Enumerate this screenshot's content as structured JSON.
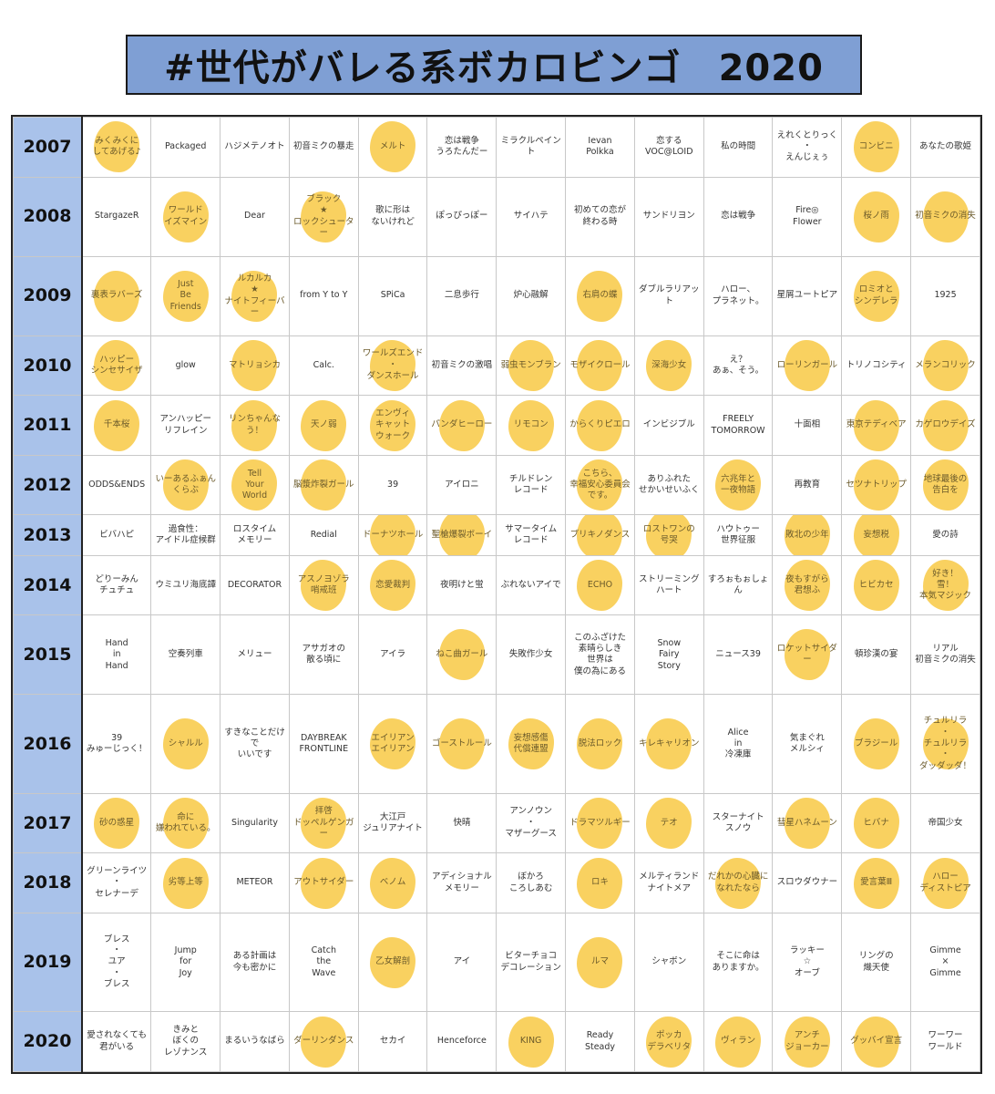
{
  "title": "#世代がバレる系ボカロビンゴ　2020",
  "colors": {
    "title_bg": "#7f9fd4",
    "year_bg": "#a9c2ea",
    "marker": "#f9cf57"
  },
  "rows": [
    {
      "year": "2007",
      "cells": [
        {
          "text": "みくみくに\nしてあげる♪",
          "marked": true
        },
        {
          "text": "Packaged",
          "marked": false
        },
        {
          "text": "ハジメテノオト",
          "marked": false
        },
        {
          "text": "初音ミクの暴走",
          "marked": false
        },
        {
          "text": "メルト",
          "marked": true
        },
        {
          "text": "恋は戦争\nうろたんだー",
          "marked": false
        },
        {
          "text": "ミラクルペイント",
          "marked": false
        },
        {
          "text": "Ievan\nPolkka",
          "marked": false
        },
        {
          "text": "恋する\nVOC@LOID",
          "marked": false
        },
        {
          "text": "私の時間",
          "marked": false
        },
        {
          "text": "えれくとりっく\n・\nえんじぇぅ",
          "marked": false
        },
        {
          "text": "コンビニ",
          "marked": true
        },
        {
          "text": "あなたの歌姫",
          "marked": false
        }
      ]
    },
    {
      "year": "2008",
      "cells": [
        {
          "text": "StargazeR",
          "marked": false
        },
        {
          "text": "ワールド\nイズマイン",
          "marked": true
        },
        {
          "text": "Dear",
          "marked": false
        },
        {
          "text": "ブラック\n★\nロックシューター",
          "marked": true
        },
        {
          "text": "歌に形は\nないけれど",
          "marked": false
        },
        {
          "text": "ぽっぴっぽー",
          "marked": false
        },
        {
          "text": "サイハテ",
          "marked": false
        },
        {
          "text": "初めての恋が\n終わる時",
          "marked": false
        },
        {
          "text": "サンドリヨン",
          "marked": false
        },
        {
          "text": "恋は戦争",
          "marked": false
        },
        {
          "text": "Fire◎\nFlower",
          "marked": false
        },
        {
          "text": "桜ノ雨",
          "marked": true
        },
        {
          "text": "初音ミクの消失",
          "marked": true
        }
      ]
    },
    {
      "year": "2009",
      "cells": [
        {
          "text": "裏表ラバーズ",
          "marked": true
        },
        {
          "text": "Just\nBe\nFriends",
          "marked": true
        },
        {
          "text": "ルカルカ\n★\nナイトフィーバー",
          "marked": true
        },
        {
          "text": "from Y to Y",
          "marked": false
        },
        {
          "text": "SPiCa",
          "marked": false
        },
        {
          "text": "二息歩行",
          "marked": false
        },
        {
          "text": "炉心融解",
          "marked": false
        },
        {
          "text": "右肩の蝶",
          "marked": true
        },
        {
          "text": "ダブルラリアット",
          "marked": false
        },
        {
          "text": "ハロー、\nプラネット。",
          "marked": false
        },
        {
          "text": "星屑ユートピア",
          "marked": false
        },
        {
          "text": "ロミオと\nシンデレラ",
          "marked": true
        },
        {
          "text": "1925",
          "marked": false
        }
      ]
    },
    {
      "year": "2010",
      "cells": [
        {
          "text": "ハッピー\nシンセサイザ",
          "marked": true
        },
        {
          "text": "glow",
          "marked": false
        },
        {
          "text": "マトリョシカ",
          "marked": true
        },
        {
          "text": "Calc.",
          "marked": false
        },
        {
          "text": "ワールズエンド\n・\nダンスホール",
          "marked": true
        },
        {
          "text": "初音ミクの激唱",
          "marked": false
        },
        {
          "text": "弱虫モンブラン",
          "marked": true
        },
        {
          "text": "モザイクロール",
          "marked": true
        },
        {
          "text": "深海少女",
          "marked": true
        },
        {
          "text": "え？\nあぁ、そう。",
          "marked": false
        },
        {
          "text": "ローリンガール",
          "marked": true
        },
        {
          "text": "トリノコシティ",
          "marked": false
        },
        {
          "text": "メランコリック",
          "marked": true
        }
      ]
    },
    {
      "year": "2011",
      "cells": [
        {
          "text": "千本桜",
          "marked": true
        },
        {
          "text": "アンハッピー\nリフレイン",
          "marked": false
        },
        {
          "text": "リンちゃんなう！",
          "marked": true
        },
        {
          "text": "天ノ弱",
          "marked": true
        },
        {
          "text": "エンヴィ\nキャット\nウォーク",
          "marked": true
        },
        {
          "text": "パンダヒーロー",
          "marked": true
        },
        {
          "text": "リモコン",
          "marked": true
        },
        {
          "text": "からくりピエロ",
          "marked": true
        },
        {
          "text": "インビジブル",
          "marked": false
        },
        {
          "text": "FREELY\nTOMORROW",
          "marked": false
        },
        {
          "text": "十面相",
          "marked": false
        },
        {
          "text": "東京テディベア",
          "marked": true
        },
        {
          "text": "カゲロウデイズ",
          "marked": true
        }
      ]
    },
    {
      "year": "2012",
      "cells": [
        {
          "text": "ODDS&ENDS",
          "marked": false
        },
        {
          "text": "いーあるふぁんくらぶ",
          "marked": true
        },
        {
          "text": "Tell\nYour\nWorld",
          "marked": true
        },
        {
          "text": "脳漿炸裂ガール",
          "marked": true
        },
        {
          "text": "39",
          "marked": false
        },
        {
          "text": "アイロニ",
          "marked": false
        },
        {
          "text": "チルドレン\nレコード",
          "marked": false
        },
        {
          "text": "こちら、\n幸福安心委員会\nです。",
          "marked": true
        },
        {
          "text": "ありふれた\nせかいせいふく",
          "marked": false
        },
        {
          "text": "六兆年と\n一夜物語",
          "marked": true
        },
        {
          "text": "再教育",
          "marked": false
        },
        {
          "text": "セツナトリップ",
          "marked": true
        },
        {
          "text": "地球最後の\n告白を",
          "marked": true
        }
      ]
    },
    {
      "year": "2013",
      "cells": [
        {
          "text": "ビバハピ",
          "marked": false
        },
        {
          "text": "過食性：\nアイドル症候群",
          "marked": false
        },
        {
          "text": "ロスタイム\nメモリー",
          "marked": false
        },
        {
          "text": "Redial",
          "marked": false
        },
        {
          "text": "ドーナツホール",
          "marked": true
        },
        {
          "text": "聖槍爆裂ボーイ",
          "marked": true
        },
        {
          "text": "サマータイム\nレコード",
          "marked": false
        },
        {
          "text": "ブリキノダンス",
          "marked": true
        },
        {
          "text": "ロストワンの\n号哭",
          "marked": true
        },
        {
          "text": "ハウトゥー\n世界征服",
          "marked": false
        },
        {
          "text": "敗北の少年",
          "marked": true
        },
        {
          "text": "妄想税",
          "marked": true
        },
        {
          "text": "愛の詩",
          "marked": false
        }
      ]
    },
    {
      "year": "2014",
      "cells": [
        {
          "text": "どりーみん\nチュチュ",
          "marked": false
        },
        {
          "text": "ウミユリ海底譚",
          "marked": false
        },
        {
          "text": "DECORATOR",
          "marked": false
        },
        {
          "text": "アスノヨゾラ\n哨戒班",
          "marked": true
        },
        {
          "text": "恋愛裁判",
          "marked": true
        },
        {
          "text": "夜明けと蛍",
          "marked": false
        },
        {
          "text": "ぶれないアイで",
          "marked": false
        },
        {
          "text": "ECHO",
          "marked": true
        },
        {
          "text": "ストリーミング\nハート",
          "marked": false
        },
        {
          "text": "すろぉもぉしょん",
          "marked": false
        },
        {
          "text": "夜もすがら\n君想ふ",
          "marked": true
        },
        {
          "text": "ヒビカセ",
          "marked": true
        },
        {
          "text": "好き！\n雪！\n本気マジック",
          "marked": true
        }
      ]
    },
    {
      "year": "2015",
      "cells": [
        {
          "text": "Hand\nin\nHand",
          "marked": false
        },
        {
          "text": "空奏列車",
          "marked": false
        },
        {
          "text": "メリュー",
          "marked": false
        },
        {
          "text": "アサガオの\n散る頃に",
          "marked": false
        },
        {
          "text": "アイラ",
          "marked": false
        },
        {
          "text": "ねこ曲ガール",
          "marked": true
        },
        {
          "text": "失敗作少女",
          "marked": false
        },
        {
          "text": "このふざけた\n素晴らしき\n世界は\n僕の為にある",
          "marked": false
        },
        {
          "text": "Snow\nFairy\nStory",
          "marked": false
        },
        {
          "text": "ニュース39",
          "marked": false
        },
        {
          "text": "ロケットサイダー",
          "marked": true
        },
        {
          "text": "頓珍漢の宴",
          "marked": false
        },
        {
          "text": "リアル\n初音ミクの消失",
          "marked": false
        }
      ]
    },
    {
      "year": "2016",
      "cells": [
        {
          "text": "39\nみゅーじっく！",
          "marked": false
        },
        {
          "text": "シャルル",
          "marked": true
        },
        {
          "text": "すきなことだけで\nいいです",
          "marked": false
        },
        {
          "text": "DAYBREAK\nFRONTLINE",
          "marked": false
        },
        {
          "text": "エイリアン\nエイリアン",
          "marked": true
        },
        {
          "text": "ゴーストルール",
          "marked": true
        },
        {
          "text": "妄想感傷\n代償連盟",
          "marked": true
        },
        {
          "text": "脱法ロック",
          "marked": true
        },
        {
          "text": "キレキャリオン",
          "marked": true
        },
        {
          "text": "Alice\nin\n冷凍庫",
          "marked": false
        },
        {
          "text": "気まぐれ\nメルシィ",
          "marked": false
        },
        {
          "text": "ブラジール",
          "marked": true
        },
        {
          "text": "チュルリラ\n・\nチュルリラ\n・\nダッダッダ！",
          "marked": true
        }
      ]
    },
    {
      "year": "2017",
      "cells": [
        {
          "text": "砂の惑星",
          "marked": true
        },
        {
          "text": "命に\n嫌われている。",
          "marked": true
        },
        {
          "text": "Singularity",
          "marked": false
        },
        {
          "text": "拝啓\nドッペルゲンガー",
          "marked": true
        },
        {
          "text": "大江戸\nジュリアナイト",
          "marked": false
        },
        {
          "text": "快晴",
          "marked": false
        },
        {
          "text": "アンノウン\n・\nマザーグース",
          "marked": false
        },
        {
          "text": "ドラマツルギー",
          "marked": true
        },
        {
          "text": "テオ",
          "marked": true
        },
        {
          "text": "スターナイト\nスノウ",
          "marked": false
        },
        {
          "text": "彗星ハネムーン",
          "marked": true
        },
        {
          "text": "ヒバナ",
          "marked": true
        },
        {
          "text": "帝国少女",
          "marked": false
        }
      ]
    },
    {
      "year": "2018",
      "cells": [
        {
          "text": "グリーンライツ\n・\nセレナーデ",
          "marked": false
        },
        {
          "text": "劣等上等",
          "marked": true
        },
        {
          "text": "METEOR",
          "marked": false
        },
        {
          "text": "アウトサイダー",
          "marked": true
        },
        {
          "text": "ベノム",
          "marked": true
        },
        {
          "text": "アディショナル\nメモリー",
          "marked": false
        },
        {
          "text": "ぼかろ\nころしあむ",
          "marked": false
        },
        {
          "text": "ロキ",
          "marked": true
        },
        {
          "text": "メルティランド\nナイトメア",
          "marked": false
        },
        {
          "text": "だれかの心臓に\nなれたなら",
          "marked": true
        },
        {
          "text": "スロウダウナー",
          "marked": false
        },
        {
          "text": "愛言葉Ⅲ",
          "marked": true
        },
        {
          "text": "ハロー\nディストピア",
          "marked": true
        }
      ]
    },
    {
      "year": "2019",
      "cells": [
        {
          "text": "ブレス\n・\nユア\n・\nブレス",
          "marked": false
        },
        {
          "text": "Jump\nfor\nJoy",
          "marked": false
        },
        {
          "text": "ある計画は\n今も密かに",
          "marked": false
        },
        {
          "text": "Catch\nthe\nWave",
          "marked": false
        },
        {
          "text": "乙女解剖",
          "marked": true
        },
        {
          "text": "アイ",
          "marked": false
        },
        {
          "text": "ビターチョコ\nデコレーション",
          "marked": false
        },
        {
          "text": "ルマ",
          "marked": true
        },
        {
          "text": "シャボン",
          "marked": false
        },
        {
          "text": "そこに命は\nありますか。",
          "marked": false
        },
        {
          "text": "ラッキー\n☆\nオーブ",
          "marked": false
        },
        {
          "text": "リングの\n熾天使",
          "marked": false
        },
        {
          "text": "Gimme\n×\nGimme",
          "marked": false
        }
      ]
    },
    {
      "year": "2020",
      "cells": [
        {
          "text": "愛されなくても\n君がいる",
          "marked": false
        },
        {
          "text": "きみと\nぼくの\nレゾナンス",
          "marked": false
        },
        {
          "text": "まるいうなばら",
          "marked": false
        },
        {
          "text": "ダーリンダンス",
          "marked": true
        },
        {
          "text": "セカイ",
          "marked": false
        },
        {
          "text": "Henceforce",
          "marked": false
        },
        {
          "text": "KING",
          "marked": true
        },
        {
          "text": "Ready\nSteady",
          "marked": false
        },
        {
          "text": "ポッカ\nデラベリタ",
          "marked": true
        },
        {
          "text": "ヴィラン",
          "marked": true
        },
        {
          "text": "アンチ\nジョーカー",
          "marked": true
        },
        {
          "text": "グッバイ宣言",
          "marked": true
        },
        {
          "text": "ワーワー\nワールド",
          "marked": false
        }
      ]
    }
  ]
}
